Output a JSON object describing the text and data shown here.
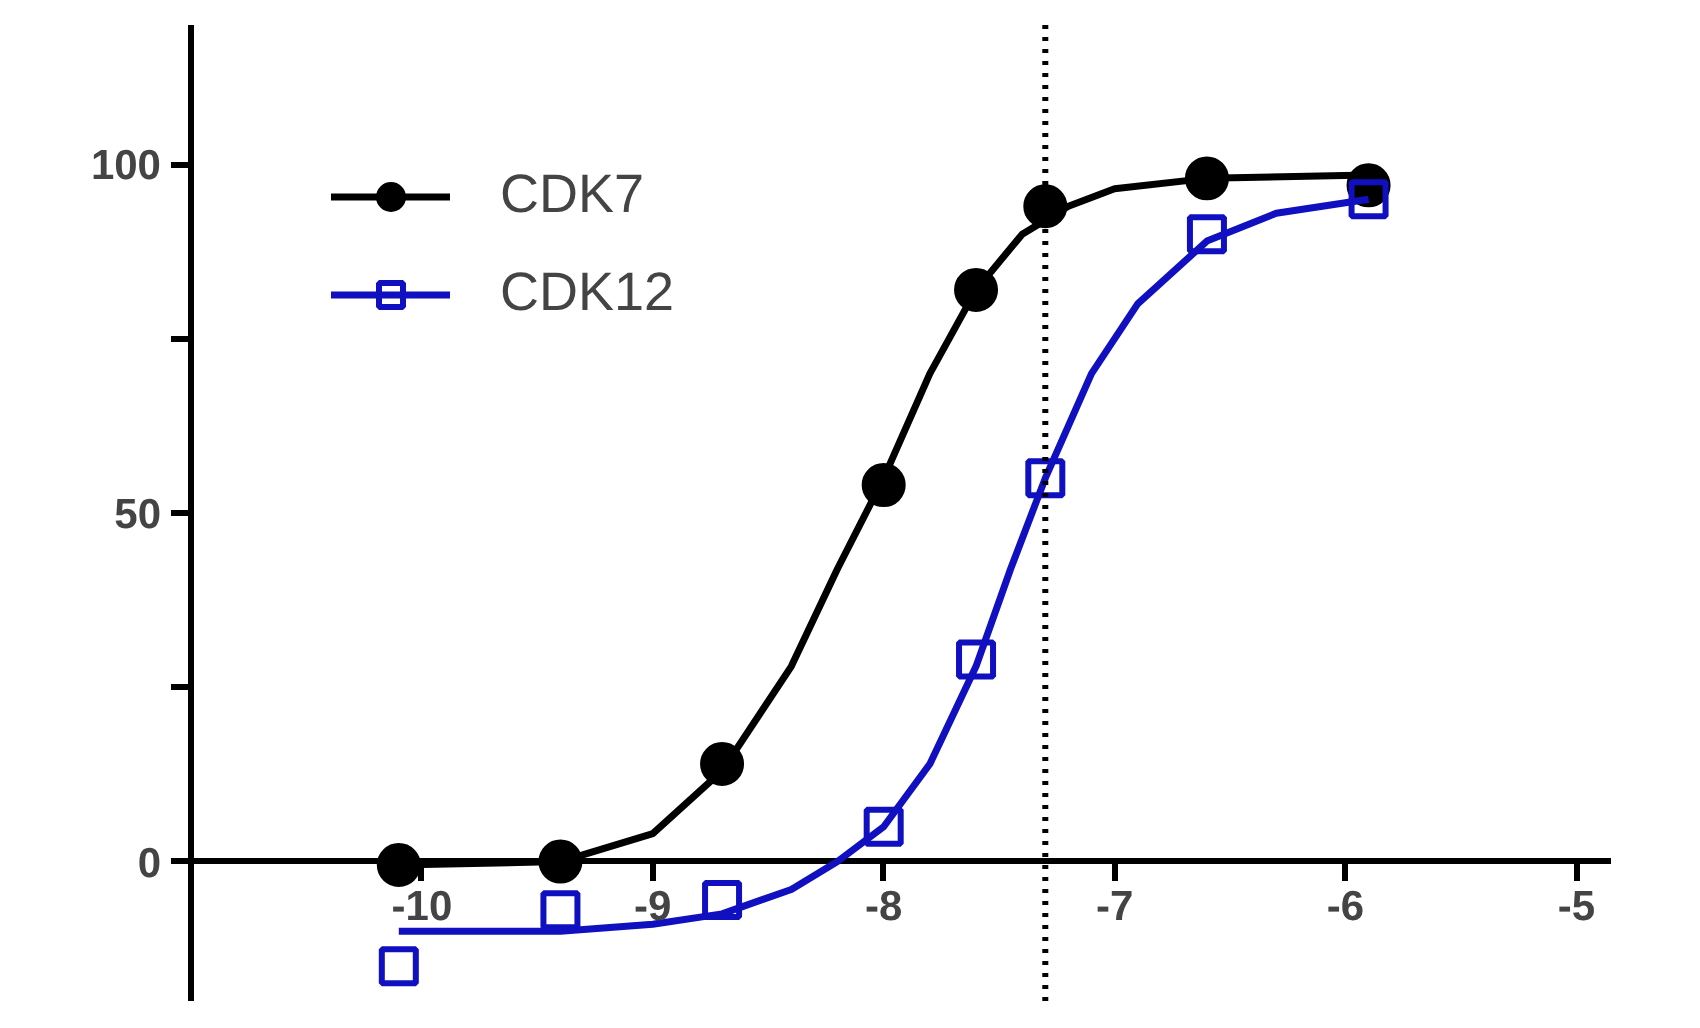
{
  "chart_data": {
    "type": "scatter",
    "xlim": [
      -11,
      -4.85
    ],
    "ylim": [
      -20,
      120
    ],
    "xticks": [
      -10,
      -9,
      -8,
      -7,
      -6,
      -5
    ],
    "yticks": [
      0,
      {
        "value": 25,
        "label": null
      },
      50,
      {
        "value": 75,
        "label": null
      },
      100
    ],
    "grid": false,
    "legend": "top left",
    "series": [
      {
        "name": "CDK7",
        "color": "#000000",
        "marker": "circle",
        "x": [
          -10.1,
          -9.4,
          -8.7,
          -8.0,
          -7.6,
          -7.3,
          -6.6,
          -5.9
        ],
        "values": [
          -0.5,
          0,
          14,
          54,
          82,
          94,
          98,
          97
        ]
      },
      {
        "name": "CDK12",
        "color": "#1010c0",
        "marker": "square",
        "x": [
          -10.1,
          -9.4,
          -8.7,
          -8.0,
          -7.6,
          -7.3,
          -6.6,
          -5.9
        ],
        "values": [
          -15,
          -7,
          -5.5,
          5,
          29,
          55,
          90,
          95
        ]
      },
      {
        "type": "line",
        "color": "#000000",
        "marker": "none",
        "x": [
          -10.1,
          -9.4,
          -9.0,
          -8.7,
          -8.4,
          -8.2,
          -8.0,
          -7.8,
          -7.6,
          -7.4,
          -7.2,
          -7.0,
          -6.6,
          -5.9
        ],
        "values": [
          -0.5,
          0,
          4,
          13,
          28,
          42,
          55,
          70,
          82,
          90,
          94,
          96.5,
          98,
          98.5
        ]
      },
      {
        "type": "line",
        "color": "#1010c0",
        "marker": "none",
        "x": [
          -10.1,
          -9.4,
          -9.0,
          -8.7,
          -8.4,
          -8.2,
          -8.0,
          -7.8,
          -7.6,
          -7.45,
          -7.3,
          -7.1,
          -6.9,
          -6.6,
          -6.3,
          -5.9
        ],
        "values": [
          -10,
          -10,
          -9,
          -7.5,
          -4,
          0,
          5,
          14,
          28,
          42,
          55,
          70,
          80,
          89,
          93,
          95
        ]
      }
    ],
    "ref_lines": [
      {
        "axis": "x",
        "value": -7.3,
        "color": "#000000",
        "line_style": "dotted"
      }
    ]
  }
}
